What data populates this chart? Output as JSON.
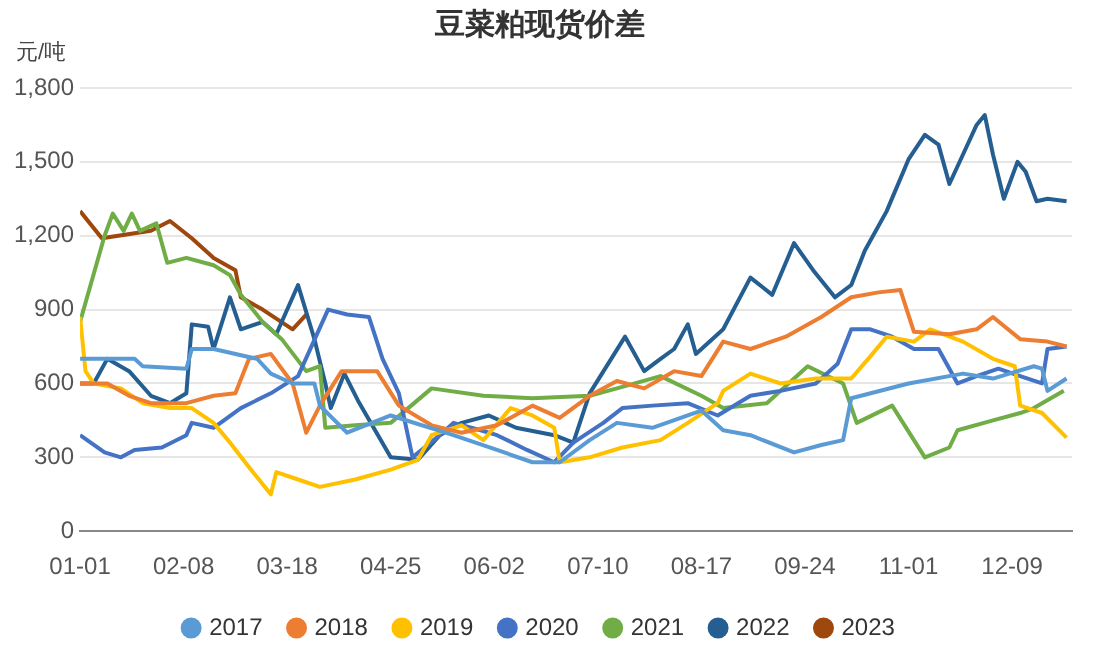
{
  "chart_data": {
    "type": "line",
    "title": "豆菜粕现货价差",
    "ylabel": "元/吨",
    "legend": "bottom",
    "grid": "y",
    "marker": "none",
    "line_style": "solid",
    "xlim": [
      "--01-01",
      "--12-31"
    ],
    "xticks": [
      {
        "value": "--01-01",
        "label": "01-01"
      },
      {
        "value": "--02-08",
        "label": "02-08"
      },
      {
        "value": "--03-18",
        "label": "03-18"
      },
      {
        "value": "--04-25",
        "label": "04-25"
      },
      {
        "value": "--06-02",
        "label": "06-02"
      },
      {
        "value": "--07-10",
        "label": "07-10"
      },
      {
        "value": "--08-17",
        "label": "08-17"
      },
      {
        "value": "--09-24",
        "label": "09-24"
      },
      {
        "value": "--11-01",
        "label": "11-01"
      },
      {
        "value": "--12-09",
        "label": "12-09"
      }
    ],
    "ylim": [
      0,
      1800
    ],
    "yticks": [
      0,
      300,
      600,
      900,
      {
        "value": 1200,
        "label": "1,200"
      },
      {
        "value": 1500,
        "label": "1,500"
      },
      {
        "value": 1800,
        "label": "1,800"
      }
    ],
    "series": [
      {
        "name": "2017",
        "color": "#5b9bd5",
        "x": [
          "--01-01",
          "--01-21",
          "--01-24",
          "--02-09",
          "--02-11",
          "--02-19",
          "--03-07",
          "--03-12",
          "--03-20",
          "--03-28",
          "--03-30",
          "--04-09",
          "--04-25",
          "--05-18",
          "--06-03",
          "--06-16",
          "--06-26",
          "--07-07",
          "--07-17",
          "--07-30",
          "--08-12",
          "--08-17",
          "--08-25",
          "--09-04",
          "--09-20",
          "--09-30",
          "--10-08",
          "--10-11",
          "--11-01",
          "--11-21",
          "--12-02",
          "--12-17",
          "--12-20",
          "--12-22",
          "--12-29"
        ],
        "values": [
          700,
          700,
          670,
          660,
          740,
          740,
          700,
          640,
          600,
          600,
          510,
          400,
          470,
          390,
          330,
          280,
          280,
          370,
          440,
          420,
          470,
          490,
          410,
          390,
          320,
          350,
          370,
          540,
          600,
          640,
          620,
          670,
          660,
          570,
          620
        ]
      },
      {
        "name": "2018",
        "color": "#ed7d31",
        "x": [
          "--01-01",
          "--01-11",
          "--01-19",
          "--01-27",
          "--02-09",
          "--02-19",
          "--02-27",
          "--03-04",
          "--03-12",
          "--03-20",
          "--03-25",
          "--03-30",
          "--04-07",
          "--04-20",
          "--04-28",
          "--05-10",
          "--05-21",
          "--06-03",
          "--06-16",
          "--06-26",
          "--07-07",
          "--07-17",
          "--07-27",
          "--08-07",
          "--08-17",
          "--08-25",
          "--09-04",
          "--09-17",
          "--09-30",
          "--10-11",
          "--10-21",
          "--10-29",
          "--11-03",
          "--11-16",
          "--11-26",
          "--12-02",
          "--12-12",
          "--12-22",
          "--12-29"
        ],
        "values": [
          600,
          600,
          550,
          520,
          520,
          550,
          560,
          700,
          720,
          600,
          400,
          510,
          650,
          650,
          510,
          430,
          400,
          430,
          510,
          460,
          550,
          610,
          580,
          650,
          630,
          770,
          740,
          790,
          870,
          950,
          970,
          980,
          810,
          800,
          820,
          870,
          780,
          770,
          750
        ]
      },
      {
        "name": "2019",
        "color": "#ffc000",
        "x": [
          "--01-01",
          "--01-03",
          "--01-06",
          "--01-16",
          "--01-24",
          "--02-03",
          "--02-11",
          "--02-19",
          "--02-25",
          "--03-04",
          "--03-12",
          "--03-14",
          "--03-22",
          "--03-30",
          "--04-12",
          "--04-25",
          "--05-05",
          "--05-10",
          "--05-21",
          "--05-29",
          "--06-08",
          "--06-16",
          "--06-24",
          "--06-26",
          "--07-07",
          "--07-19",
          "--08-02",
          "--08-12",
          "--08-23",
          "--08-25",
          "--09-04",
          "--09-15",
          "--09-28",
          "--10-11",
          "--10-18",
          "--10-24",
          "--11-03",
          "--11-09",
          "--11-21",
          "--12-02",
          "--12-10",
          "--12-12",
          "--12-20",
          "--12-29"
        ],
        "values": [
          870,
          650,
          600,
          580,
          520,
          500,
          500,
          440,
          360,
          260,
          150,
          240,
          210,
          180,
          210,
          250,
          290,
          390,
          430,
          370,
          500,
          470,
          420,
          280,
          300,
          340,
          370,
          440,
          520,
          570,
          640,
          600,
          620,
          620,
          710,
          790,
          770,
          820,
          770,
          700,
          670,
          510,
          480,
          380
        ]
      },
      {
        "name": "2020",
        "color": "#4472c4",
        "x": [
          "--01-01",
          "--01-10",
          "--01-16",
          "--01-21",
          "--01-31",
          "--02-09",
          "--02-11",
          "--02-19",
          "--03-01",
          "--03-12",
          "--03-22",
          "--04-02",
          "--04-09",
          "--04-17",
          "--04-22",
          "--04-28",
          "--05-03",
          "--05-13",
          "--05-18",
          "--05-28",
          "--06-03",
          "--06-14",
          "--06-24",
          "--07-01",
          "--07-12",
          "--07-19",
          "--07-30",
          "--08-12",
          "--08-23",
          "--09-04",
          "--09-15",
          "--09-28",
          "--10-06",
          "--10-11",
          "--10-18",
          "--10-26",
          "--11-03",
          "--11-12",
          "--11-19",
          "--11-26",
          "--12-04",
          "--12-12",
          "--12-20",
          "--12-22",
          "--12-29"
        ],
        "values": [
          390,
          320,
          300,
          330,
          340,
          390,
          440,
          420,
          500,
          560,
          630,
          900,
          880,
          870,
          700,
          560,
          300,
          390,
          440,
          410,
          390,
          330,
          280,
          360,
          440,
          500,
          510,
          520,
          470,
          550,
          570,
          600,
          680,
          820,
          820,
          790,
          740,
          740,
          600,
          630,
          660,
          630,
          600,
          740,
          750
        ]
      },
      {
        "name": "2021",
        "color": "#70ad47",
        "x": [
          "--01-01",
          "--01-10",
          "--01-13",
          "--01-17",
          "--01-20",
          "--01-23",
          "--01-29",
          "--02-02",
          "--02-09",
          "--02-19",
          "--02-25",
          "--03-01",
          "--03-09",
          "--03-16",
          "--03-25",
          "--03-30",
          "--04-01",
          "--04-12",
          "--04-25",
          "--05-10",
          "--05-29",
          "--06-16",
          "--07-07",
          "--07-17",
          "--08-02",
          "--08-17",
          "--08-25",
          "--09-10",
          "--09-25",
          "--10-08",
          "--10-13",
          "--10-26",
          "--11-07",
          "--11-16",
          "--11-19",
          "--12-02",
          "--12-12",
          "--12-17",
          "--12-28"
        ],
        "values": [
          850,
          1200,
          1290,
          1220,
          1290,
          1220,
          1250,
          1090,
          1110,
          1080,
          1040,
          960,
          850,
          780,
          650,
          670,
          420,
          430,
          440,
          580,
          550,
          540,
          550,
          580,
          630,
          550,
          500,
          520,
          670,
          600,
          440,
          510,
          300,
          340,
          410,
          450,
          480,
          500,
          570
        ]
      },
      {
        "name": "2022",
        "color": "#255e91",
        "x": [
          "--01-01",
          "--01-06",
          "--01-11",
          "--01-19",
          "--01-27",
          "--02-03",
          "--02-09",
          "--02-11",
          "--02-17",
          "--02-19",
          "--02-25",
          "--03-01",
          "--03-09",
          "--03-14",
          "--03-22",
          "--03-28",
          "--04-01",
          "--04-03",
          "--04-08",
          "--04-13",
          "--04-25",
          "--05-05",
          "--05-13",
          "--05-21",
          "--05-31",
          "--06-10",
          "--06-24",
          "--07-01",
          "--07-07",
          "--07-20",
          "--07-27",
          "--08-02",
          "--08-07",
          "--08-12",
          "--08-15",
          "--08-25",
          "--09-04",
          "--09-12",
          "--09-20",
          "--09-27",
          "--10-05",
          "--10-11",
          "--10-16",
          "--10-24",
          "--11-01",
          "--11-07",
          "--11-12",
          "--11-16",
          "--11-21",
          "--11-26",
          "--11-29",
          "--12-02",
          "--12-06",
          "--12-11",
          "--12-14",
          "--12-18",
          "--12-22",
          "--12-29"
        ],
        "values": [
          600,
          600,
          700,
          650,
          550,
          520,
          560,
          840,
          830,
          740,
          950,
          820,
          850,
          800,
          1000,
          780,
          600,
          500,
          640,
          530,
          300,
          290,
          390,
          440,
          470,
          420,
          390,
          360,
          560,
          790,
          650,
          700,
          740,
          840,
          720,
          820,
          1030,
          960,
          1170,
          1060,
          950,
          1000,
          1140,
          1300,
          1510,
          1610,
          1570,
          1410,
          1530,
          1650,
          1690,
          1530,
          1350,
          1500,
          1460,
          1340,
          1350,
          1340
        ]
      },
      {
        "name": "2023",
        "color": "#9e480e",
        "x": [
          "--01-01",
          "--01-09",
          "--01-27",
          "--02-03",
          "--02-11",
          "--02-19",
          "--02-27",
          "--03-01",
          "--03-09",
          "--03-20",
          "--03-25"
        ],
        "values": [
          1300,
          1190,
          1220,
          1260,
          1190,
          1110,
          1060,
          950,
          900,
          820,
          880
        ]
      }
    ]
  }
}
